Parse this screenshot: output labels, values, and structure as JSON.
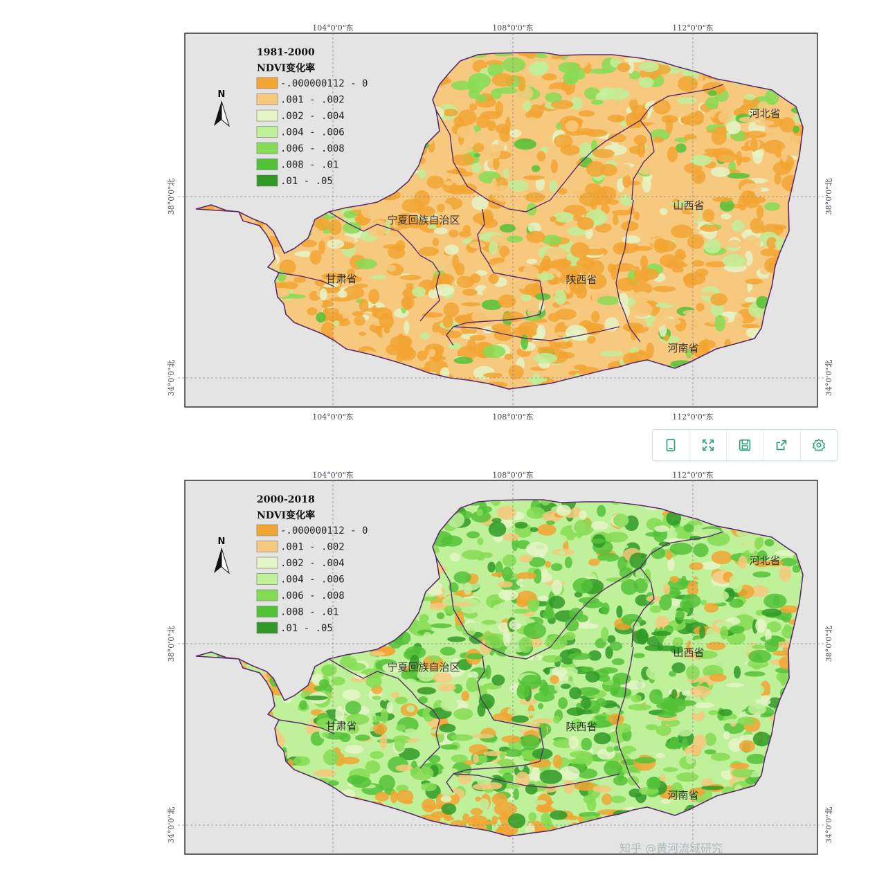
{
  "maps": [
    {
      "period": "1981-2000",
      "variant": "early",
      "legend_title": "NDVI变化率",
      "top_lon_labels": [
        "104°0'0\"东",
        "108°0'0\"东",
        "112°0'0\"东"
      ],
      "bottom_lon_labels": [
        "104°0'0\"东",
        "108°0'0\"东",
        "112°0'0\"东"
      ],
      "lat_labels": [
        "38°0'0\"北",
        "34°0'0\"北"
      ]
    },
    {
      "period": "2000-2018",
      "variant": "late",
      "legend_title": "NDVI变化率",
      "top_lon_labels": [
        "104°0'0\"东",
        "108°0'0\"东",
        "112°0'0\"东"
      ],
      "bottom_lon_labels": [],
      "lat_labels": [
        "38°0'0\"北",
        "34°0'0\"北"
      ]
    }
  ],
  "legend_classes": [
    {
      "label": "-.000000112 - 0",
      "color": "#f2a532"
    },
    {
      "label": ".001 - .002",
      "color": "#f6c97e"
    },
    {
      "label": ".002 - .004",
      "color": "#e4f5c6"
    },
    {
      "label": ".004 - .006",
      "color": "#bff09a"
    },
    {
      "label": ".006 - .008",
      "color": "#86dc55"
    },
    {
      "label": ".008 - .01",
      "color": "#52c237"
    },
    {
      "label": ".01 - .05",
      "color": "#2f9a26"
    }
  ],
  "north_arrow": "N",
  "provinces": [
    "宁夏回族自治区",
    "甘肃省",
    "陕西省",
    "山西省",
    "河北省",
    "河南省"
  ],
  "colors": {
    "map_background": "#e4e4e4",
    "boundary": "#5a2a6a",
    "grid_line": "#888888"
  },
  "toolbar": {
    "icons": [
      "tablet-icon",
      "fullscreen-icon",
      "save-icon",
      "share-icon",
      "settings-icon"
    ]
  },
  "watermark": "知乎 @黄河流域研究"
}
